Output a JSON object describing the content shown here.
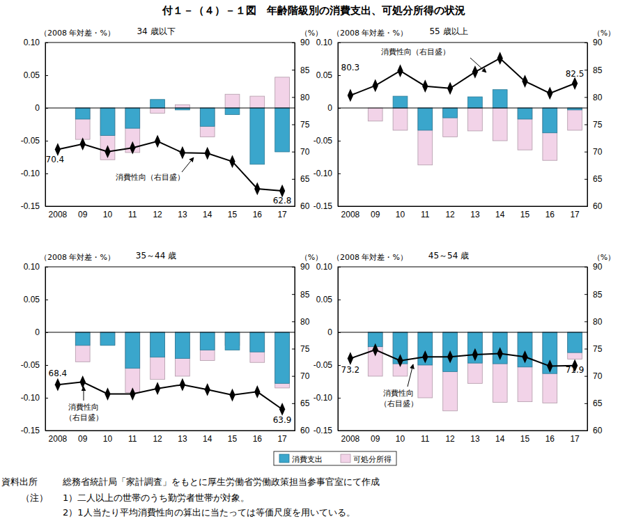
{
  "title": "付１－（４）－１図　年齢階級別の消費支出、可処分所得の状況",
  "notes": {
    "source_label": "資料出所",
    "source": "総務省統計局「家計調査」をもとに厚生労働省労働政策担当参事官室にて作成",
    "note_label": "（注）",
    "items": [
      "1）二人以上の世帯のうち勤労者世帯が対象。",
      "2）1人当たり平均消費性向の算出に当たっては等価尺度を用いている。"
    ]
  },
  "chart_data": [
    {
      "type": "bar",
      "title": "34 歳以下",
      "y_label": "（2008 年対差・%）",
      "y2_label": "（%）",
      "annotation": [
        "消費性向（右目盛）"
      ],
      "categories": [
        "2008",
        "09",
        "10",
        "11",
        "12",
        "13",
        "14",
        "15",
        "16",
        "17"
      ],
      "ylim": [
        -0.15,
        0.1
      ],
      "yticks": [
        {
          "value": 0.1,
          "label": "0.10"
        },
        0.05,
        0,
        -0.05,
        {
          "value": -0.1,
          "label": "-0.10"
        },
        -0.15
      ],
      "y2lim": [
        60,
        90
      ],
      "y2ticks": [
        90,
        85,
        80,
        75,
        70,
        65,
        60
      ],
      "stacked": false,
      "grid": false,
      "legend": "bottom",
      "series": [
        {
          "name": "消費支出",
          "color": "#3aa6cc",
          "values": [
            0,
            -0.017,
            -0.042,
            -0.031,
            0.013,
            -0.003,
            -0.028,
            -0.01,
            -0.086,
            -0.067
          ]
        },
        {
          "name": "可処分所得",
          "color": "#f2d3e8",
          "values": [
            0,
            -0.048,
            -0.079,
            -0.068,
            -0.008,
            0.005,
            -0.044,
            0.021,
            0.018,
            0.047
          ]
        },
        {
          "name": "消費性向",
          "type": "line",
          "axis": "y2",
          "color": "#000000",
          "marker": "diamond",
          "data_labels": true,
          "values": [
            70.4,
            71.4,
            70.0,
            70.7,
            71.9,
            69.8,
            69.7,
            68.2,
            63.2,
            62.8
          ],
          "value_labels": [
            "70.4",
            null,
            null,
            null,
            null,
            null,
            null,
            null,
            null,
            "62.8"
          ]
        }
      ]
    },
    {
      "type": "bar",
      "title": "55 歳以上",
      "y_label": "（2008 年対差・%）",
      "y2_label": "（%）",
      "annotation": [
        "消費性向（右目盛）"
      ],
      "categories": [
        "2008",
        "09",
        "10",
        "11",
        "12",
        "13",
        "14",
        "15",
        "16",
        "17"
      ],
      "ylim": [
        -0.15,
        0.1
      ],
      "yticks": [
        {
          "value": 0.1,
          "label": "0.10"
        },
        0.05,
        0,
        -0.05,
        {
          "value": -0.1,
          "label": "-0.10"
        },
        -0.15
      ],
      "y2lim": [
        60,
        90
      ],
      "y2ticks": [
        90,
        85,
        80,
        75,
        70,
        65,
        60
      ],
      "stacked": false,
      "grid": false,
      "series": [
        {
          "name": "消費支出",
          "color": "#3aa6cc",
          "values": [
            0,
            0,
            0.018,
            -0.034,
            -0.015,
            0.017,
            0.028,
            -0.017,
            -0.038,
            -0.003
          ]
        },
        {
          "name": "可処分所得",
          "color": "#f2d3e8",
          "values": [
            0,
            -0.02,
            -0.034,
            -0.087,
            -0.044,
            -0.035,
            -0.05,
            -0.064,
            -0.08,
            -0.034
          ]
        },
        {
          "name": "消費性向",
          "type": "line",
          "axis": "y2",
          "color": "#000000",
          "marker": "diamond",
          "data_labels": true,
          "values": [
            80.3,
            82.1,
            84.8,
            82.0,
            81.6,
            84.6,
            87.1,
            82.9,
            80.7,
            82.5
          ],
          "value_labels": [
            "80.3",
            null,
            null,
            null,
            null,
            null,
            null,
            null,
            null,
            "82.5"
          ]
        }
      ]
    },
    {
      "type": "bar",
      "title": "35～44 歳",
      "y_label": "（2008 年対差・%）",
      "y2_label": "（%）",
      "annotation": [
        "消費性向",
        "（右目盛）"
      ],
      "categories": [
        "2008",
        "09",
        "10",
        "11",
        "12",
        "13",
        "14",
        "15",
        "16",
        "17"
      ],
      "ylim": [
        -0.15,
        0.1
      ],
      "yticks": [
        {
          "value": 0.1,
          "label": "0.10"
        },
        0.05,
        0,
        -0.05,
        {
          "value": -0.1,
          "label": "-0.10"
        },
        -0.15
      ],
      "y2lim": [
        60,
        90
      ],
      "y2ticks": [
        90,
        85,
        80,
        75,
        70,
        65,
        60
      ],
      "stacked": false,
      "grid": false,
      "series": [
        {
          "name": "消費支出",
          "color": "#3aa6cc",
          "values": [
            0,
            -0.02,
            -0.02,
            -0.055,
            -0.038,
            -0.04,
            -0.027,
            -0.027,
            -0.03,
            -0.078
          ]
        },
        {
          "name": "可処分所得",
          "color": "#f2d3e8",
          "values": [
            0,
            -0.045,
            -0.019,
            -0.092,
            -0.072,
            -0.067,
            -0.043,
            -0.02,
            -0.046,
            -0.085
          ]
        },
        {
          "name": "消費性向",
          "type": "line",
          "axis": "y2",
          "color": "#000000",
          "marker": "diamond",
          "data_labels": true,
          "values": [
            68.4,
            68.9,
            66.7,
            66.7,
            67.7,
            68.4,
            67.5,
            66.5,
            67.1,
            63.9
          ],
          "value_labels": [
            "68.4",
            null,
            null,
            null,
            null,
            null,
            null,
            null,
            null,
            "63.9"
          ]
        }
      ]
    },
    {
      "type": "bar",
      "title": "45～54 歳",
      "y_label": "（2008 年対差・%）",
      "y2_label": "（%）",
      "annotation": [
        "消費性向",
        "（右目盛）"
      ],
      "categories": [
        "2008",
        "09",
        "10",
        "11",
        "12",
        "13",
        "14",
        "15",
        "16",
        "17"
      ],
      "ylim": [
        -0.15,
        0.1
      ],
      "yticks": [
        {
          "value": 0.1,
          "label": "0.10"
        },
        0.05,
        0,
        -0.05,
        {
          "value": -0.1,
          "label": "-0.10"
        },
        -0.15
      ],
      "y2lim": [
        60,
        90
      ],
      "y2ticks": [
        90,
        85,
        80,
        75,
        70,
        65,
        60
      ],
      "stacked": false,
      "grid": false,
      "series": [
        {
          "name": "消費支出",
          "color": "#3aa6cc",
          "values": [
            0,
            -0.022,
            -0.048,
            -0.05,
            -0.06,
            -0.047,
            -0.048,
            -0.053,
            -0.063,
            -0.031
          ]
        },
        {
          "name": "可処分所得",
          "color": "#f2d3e8",
          "values": [
            0,
            -0.067,
            -0.067,
            -0.1,
            -0.12,
            -0.078,
            -0.107,
            -0.106,
            -0.108,
            -0.041
          ]
        },
        {
          "name": "消費性向",
          "type": "line",
          "axis": "y2",
          "color": "#000000",
          "marker": "diamond",
          "data_labels": true,
          "values": [
            73.2,
            74.8,
            72.8,
            73.5,
            73.5,
            73.9,
            74.1,
            73.5,
            71.8,
            71.9
          ],
          "value_labels": [
            "73.2",
            null,
            null,
            null,
            null,
            null,
            null,
            null,
            null,
            "71.9"
          ]
        }
      ]
    }
  ]
}
